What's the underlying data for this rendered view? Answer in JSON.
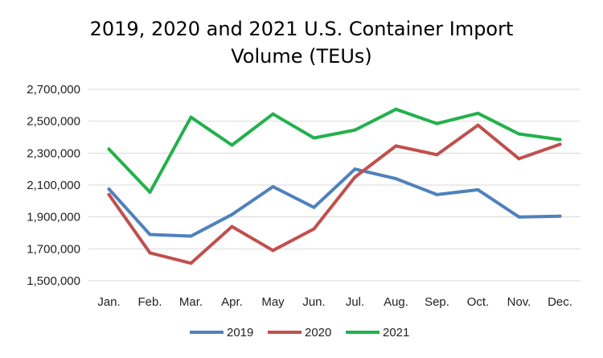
{
  "chart_data": {
    "type": "line",
    "title_line1": "2019, 2020 and 2021 U.S. Container Import",
    "title_line2": "Volume (TEUs)",
    "categories": [
      "Jan.",
      "Feb.",
      "Mar.",
      "Apr.",
      "May",
      "Jun.",
      "Jul.",
      "Aug.",
      "Sep.",
      "Oct.",
      "Nov.",
      "Dec."
    ],
    "yticks": [
      "1,500,000",
      "1,700,000",
      "1,900,000",
      "2,100,000",
      "2,300,000",
      "2,500,000",
      "2,700,000"
    ],
    "ylim": [
      1500000,
      2700000
    ],
    "grid": true,
    "legend_position": "bottom",
    "series": [
      {
        "name": "2019",
        "color": "#4f81bd",
        "values": [
          2075000,
          1790000,
          1780000,
          1915000,
          2090000,
          1960000,
          2200000,
          2140000,
          2040000,
          2070000,
          1900000,
          1905000
        ]
      },
      {
        "name": "2020",
        "color": "#c0504d",
        "values": [
          2040000,
          1675000,
          1610000,
          1840000,
          1690000,
          1825000,
          2150000,
          2345000,
          2290000,
          2475000,
          2265000,
          2355000
        ]
      },
      {
        "name": "2021",
        "color": "#22b14c",
        "values": [
          2325000,
          2055000,
          2525000,
          2350000,
          2545000,
          2395000,
          2445000,
          2575000,
          2485000,
          2550000,
          2420000,
          2385000
        ]
      }
    ]
  }
}
